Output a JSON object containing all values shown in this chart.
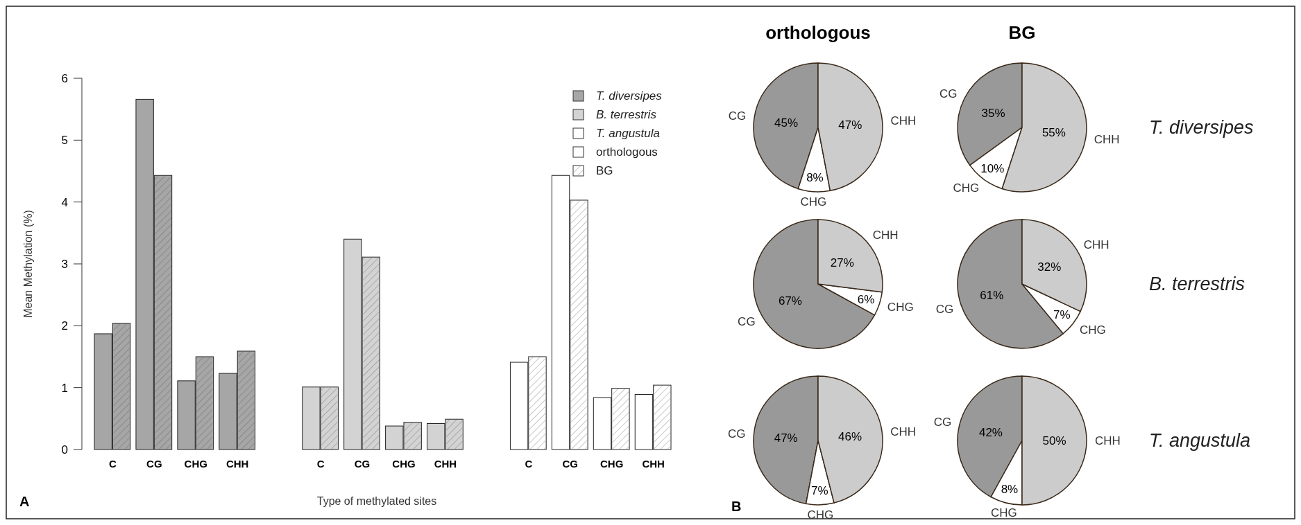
{
  "chart_data": [
    {
      "type": "bar",
      "xlabel": "Type of methylated sites",
      "ylabel": "Mean Methylation (%)",
      "categories": [
        "C",
        "CG",
        "CHG",
        "CHH",
        null,
        "C",
        "CG",
        "CHG",
        "CHH",
        null,
        "C",
        "CG",
        "CHG",
        "CHH"
      ],
      "series": [
        {
          "name": "T. diversipes",
          "color": "#a6a6a6",
          "values": [
            null,
            null,
            null,
            null,
            null,
            null,
            null,
            null,
            null,
            null,
            null,
            null,
            null,
            null
          ]
        },
        {
          "name": "B. terrestris",
          "color": "#d3d3d3",
          "values": [
            null,
            null,
            null,
            null,
            null,
            null,
            null,
            null,
            null,
            null,
            null,
            null,
            null,
            null
          ]
        },
        {
          "name": "T. angustula",
          "color": "#ffffff",
          "values": [
            null,
            null,
            null,
            null,
            null,
            null,
            null,
            null,
            null,
            null,
            null,
            null,
            null,
            null
          ]
        },
        {
          "name": "orthologous",
          "color": "#ffffff",
          "values": [
            null,
            null,
            null,
            null,
            null,
            null,
            null,
            null,
            null,
            null,
            null,
            null,
            null,
            null
          ]
        },
        {
          "name": "BG",
          "color": "#ffffff",
          "values": [
            null,
            null,
            null,
            null,
            null,
            null,
            null,
            null,
            null,
            null,
            null,
            null,
            null,
            null
          ]
        },
        {
          "colors": [
            "#a6a6a6",
            "#a6a6a6",
            "#a6a6a6",
            "#a6a6a6",
            null,
            "#d3d3d3",
            "#d3d3d3",
            "#d3d3d3",
            "#d3d3d3",
            null,
            "#ffffff",
            "#ffffff",
            "#ffffff",
            "#ffffff"
          ],
          "values": [
            1.87,
            5.66,
            1.11,
            1.23,
            null,
            1.01,
            3.4,
            0.38,
            0.42,
            null,
            1.41,
            4.43,
            0.84,
            0.89
          ]
        },
        {
          "colors": [
            "#a6a6a6",
            "#a6a6a6",
            "#a6a6a6",
            "#a6a6a6",
            null,
            "#d3d3d3",
            "#d3d3d3",
            "#d3d3d3",
            "#d3d3d3",
            null,
            "#ffffff",
            "#ffffff",
            "#ffffff",
            "#ffffff"
          ],
          "values": [
            2.04,
            4.43,
            1.5,
            1.59,
            null,
            1.01,
            3.11,
            0.44,
            0.49,
            null,
            1.5,
            4.03,
            0.99,
            1.04
          ]
        }
      ],
      "ylim": [
        0,
        6
      ],
      "yticks": [
        0,
        1,
        2,
        3,
        4,
        5,
        6
      ],
      "legend": "top right",
      "annotations": [
        "A"
      ]
    },
    {
      "type": "pie",
      "title": "orthologous",
      "categories": [
        "CG",
        "CHG",
        "CHH"
      ],
      "values": [
        45,
        8,
        47
      ],
      "colors": [
        "#999999",
        "#ffffff",
        "#cccccc"
      ],
      "value_labels": [
        "45%",
        "8%",
        "47%"
      ]
    },
    {
      "type": "pie",
      "title": "BG",
      "categories": [
        "CG",
        "CHG",
        "CHH"
      ],
      "values": [
        35,
        10,
        55
      ],
      "colors": [
        "#999999",
        "#ffffff",
        "#cccccc"
      ],
      "value_labels": [
        "35%",
        "10%",
        "55%"
      ],
      "annotations": [
        "T. diversipes"
      ]
    },
    {
      "type": "pie",
      "categories": [
        "CG",
        "CHG",
        "CHH"
      ],
      "values": [
        67,
        6,
        27
      ],
      "colors": [
        "#999999",
        "#ffffff",
        "#cccccc"
      ],
      "value_labels": [
        "67%",
        "6%",
        "27%"
      ]
    },
    {
      "type": "pie",
      "categories": [
        "CG",
        "CHG",
        "CHH"
      ],
      "values": [
        61,
        7,
        32
      ],
      "colors": [
        "#999999",
        "#ffffff",
        "#cccccc"
      ],
      "value_labels": [
        "61%",
        "7%",
        "32%"
      ],
      "annotations": [
        "B. terrestris"
      ]
    },
    {
      "type": "pie",
      "categories": [
        "CG",
        "CHG",
        "CHH"
      ],
      "values": [
        47,
        7,
        46
      ],
      "colors": [
        "#999999",
        "#ffffff",
        "#cccccc"
      ],
      "value_labels": [
        "47%",
        "7%",
        "46%"
      ],
      "annotations": [
        "B"
      ]
    },
    {
      "type": "pie",
      "categories": [
        "CG",
        "CHG",
        "CHH"
      ],
      "values": [
        42,
        8,
        50
      ],
      "colors": [
        "#999999",
        "#ffffff",
        "#cccccc"
      ],
      "value_labels": [
        "42%",
        "8%",
        "50%"
      ],
      "annotations": [
        "T. angustula"
      ]
    }
  ]
}
